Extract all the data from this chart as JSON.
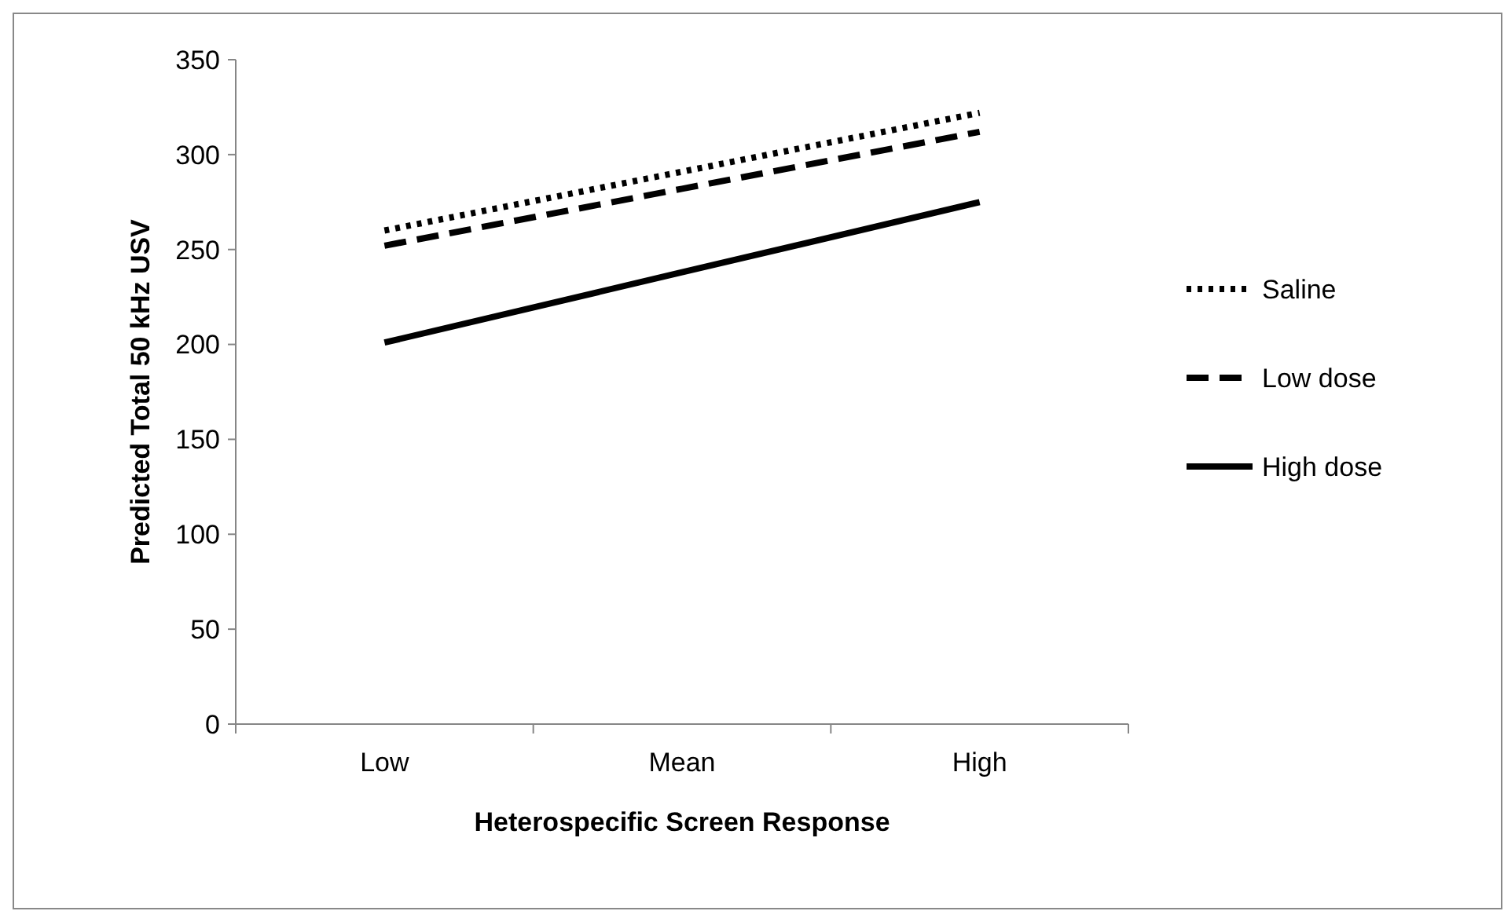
{
  "chart_data": {
    "type": "line",
    "xlabel": "Heterospecific Screen Response",
    "ylabel": "Predicted Total 50 kHz USV",
    "categories": [
      "Low",
      "Mean",
      "High"
    ],
    "series": [
      {
        "name": "Saline",
        "color": "#000000",
        "line_style": "dotted",
        "values": [
          260,
          291,
          322
        ]
      },
      {
        "name": "Low dose",
        "color": "#000000",
        "line_style": "dashed",
        "values": [
          252,
          282,
          312
        ]
      },
      {
        "name": "High dose",
        "color": "#000000",
        "line_style": "solid",
        "values": [
          201,
          238,
          275
        ]
      }
    ],
    "ylim": [
      0,
      350
    ],
    "yticks": [
      0,
      50,
      100,
      150,
      200,
      250,
      300,
      350
    ],
    "grid": false,
    "legend": "right",
    "marker": "none"
  }
}
